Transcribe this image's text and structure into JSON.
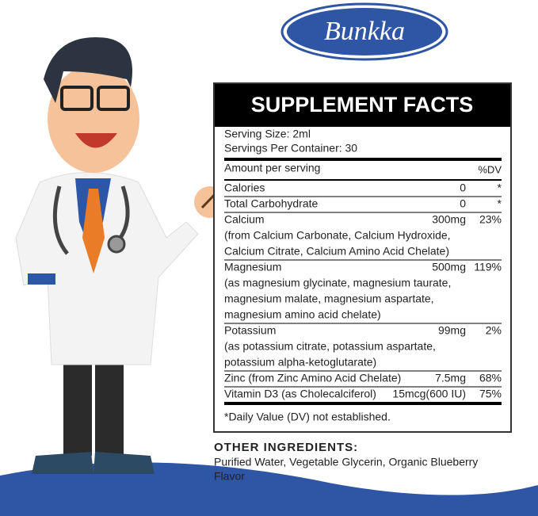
{
  "logo": "Bunkka",
  "facts": {
    "title": "SUPPLEMENT FACTS",
    "serving_size": "Serving Size: 2ml",
    "servings_per_container": "Servings Per Container: 30",
    "amount_header": "Amount per serving",
    "dv_header": "%DV",
    "rows": [
      {
        "name": "Calories",
        "amount": "0",
        "dv": "*",
        "detail": []
      },
      {
        "name": "Total Carbohydrate",
        "amount": "0",
        "dv": "*",
        "detail": []
      },
      {
        "name": "Calcium",
        "amount": "300mg",
        "dv": "23%",
        "detail": [
          "(from Calcium Carbonate, Calcium Hydroxide,",
          "Calcium Citrate, Calcium Amino Acid Chelate)"
        ]
      },
      {
        "name": "Magnesium",
        "amount": "500mg",
        "dv": "119%",
        "detail": [
          "(as magnesium glycinate, magnesium taurate,",
          "magnesium malate, magnesium aspartate,",
          "magnesium amino acid chelate)"
        ]
      },
      {
        "name": "Potassium",
        "amount": "99mg",
        "dv": "2%",
        "detail": [
          "(as potassium citrate, potassium aspartate,",
          "potassium alpha-ketoglutarate)"
        ]
      },
      {
        "name": "Zinc (from Zinc Amino Acid Chelate)",
        "amount": "7.5mg",
        "dv": "68%",
        "detail": []
      },
      {
        "name": "Vitamin D3 (as Cholecalciferol)",
        "amount": "15mcg(600 IU)",
        "dv": "75%",
        "detail": []
      }
    ],
    "footnote": "*Daily Value (DV) not established."
  },
  "other_ingredients": {
    "heading": "OTHER INGREDIENTS:",
    "text_lines": [
      "Purified Water, Vegetable Glycerin, Organic Blueberry",
      "Flavor"
    ]
  }
}
